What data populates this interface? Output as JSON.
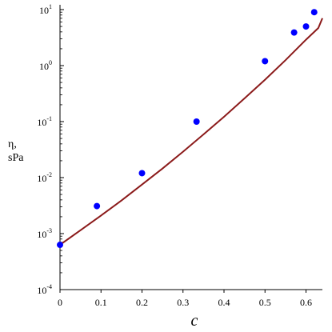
{
  "chart_data": {
    "type": "scatter",
    "xlabel": "c",
    "ylabel_line1": "η,",
    "ylabel_line2": "sPa",
    "x_ticks": [
      0,
      0.1,
      0.2,
      0.3,
      0.4,
      0.5,
      0.6
    ],
    "x_tick_labels": [
      "0",
      "0.1",
      "0.2",
      "0.3",
      "0.4",
      "0.5",
      "0.6"
    ],
    "y_ticks": [
      {
        "base": "10",
        "exp": "-4",
        "value": 0.0001
      },
      {
        "base": "10",
        "exp": "-3",
        "value": 0.001
      },
      {
        "base": "10",
        "exp": "-2",
        "value": 0.01
      },
      {
        "base": "10",
        "exp": "-1",
        "value": 0.1
      },
      {
        "base": "10",
        "exp": "0",
        "value": 1
      },
      {
        "base": "10",
        "exp": "1",
        "value": 10
      }
    ],
    "xlim": [
      0,
      0.64
    ],
    "ylim": [
      0.0001,
      10
    ],
    "y_scale": "log",
    "grid": false,
    "series": [
      {
        "kind": "scatter",
        "color": "#0000ff",
        "points": [
          {
            "x": 0.0,
            "y": 0.00063
          },
          {
            "x": 0.09,
            "y": 0.0031
          },
          {
            "x": 0.2,
            "y": 0.012
          },
          {
            "x": 0.333,
            "y": 0.1
          },
          {
            "x": 0.5,
            "y": 1.2
          },
          {
            "x": 0.571,
            "y": 3.9
          },
          {
            "x": 0.6,
            "y": 5.0
          },
          {
            "x": 0.62,
            "y": 9.0
          }
        ]
      },
      {
        "kind": "line",
        "color": "#8b1a1a",
        "points": [
          {
            "x": 0.0,
            "y": 0.00063
          },
          {
            "x": 0.05,
            "y": 0.00115
          },
          {
            "x": 0.1,
            "y": 0.0021
          },
          {
            "x": 0.15,
            "y": 0.0039
          },
          {
            "x": 0.2,
            "y": 0.0075
          },
          {
            "x": 0.25,
            "y": 0.0145
          },
          {
            "x": 0.3,
            "y": 0.029
          },
          {
            "x": 0.35,
            "y": 0.059
          },
          {
            "x": 0.4,
            "y": 0.122
          },
          {
            "x": 0.45,
            "y": 0.26
          },
          {
            "x": 0.5,
            "y": 0.56
          },
          {
            "x": 0.55,
            "y": 1.25
          },
          {
            "x": 0.6,
            "y": 2.9
          },
          {
            "x": 0.63,
            "y": 4.7
          },
          {
            "x": 0.64,
            "y": 7.0
          }
        ]
      }
    ]
  }
}
